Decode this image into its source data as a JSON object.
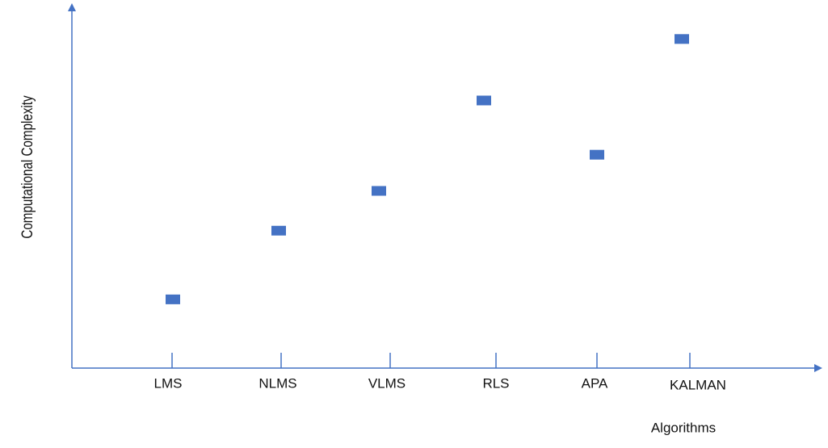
{
  "chart_data": {
    "type": "scatter",
    "x_label": "Algorithms",
    "y_label": "Computational Complexity",
    "categories": [
      "LMS",
      "NLMS",
      "VLMS",
      "RLS",
      "APA",
      "KALMAN"
    ],
    "values": [
      19,
      38,
      49,
      74,
      59,
      91
    ],
    "color": "#4472c4",
    "ylim": [
      0,
      100
    ],
    "grid": false
  }
}
